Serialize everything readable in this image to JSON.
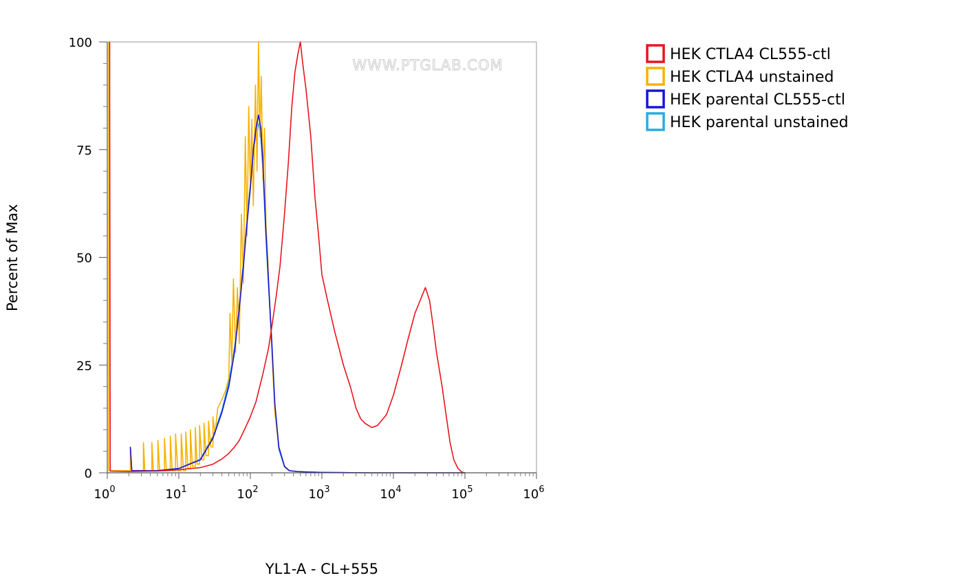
{
  "chart_data": {
    "type": "line",
    "xlabel": "YL1-A - CL+555",
    "ylabel": "Percent of Max",
    "x_scale": "log",
    "xlim": [
      1,
      1000000
    ],
    "ylim": [
      0,
      100
    ],
    "x_ticks": [
      1,
      10,
      100,
      1000,
      10000,
      100000,
      1000000
    ],
    "y_ticks": [
      0,
      25,
      50,
      75,
      100
    ],
    "x_tick_labels": [
      {
        "base": "10",
        "exp": "0"
      },
      {
        "base": "10",
        "exp": "1"
      },
      {
        "base": "10",
        "exp": "2"
      },
      {
        "base": "10",
        "exp": "3"
      },
      {
        "base": "10",
        "exp": "4"
      },
      {
        "base": "10",
        "exp": "5"
      },
      {
        "base": "10",
        "exp": "6"
      }
    ],
    "y_tick_labels": [
      "0",
      "25",
      "50",
      "75",
      "100"
    ],
    "grid": false,
    "legend_position": "right",
    "watermark": "WWW.PTGLAB.COM",
    "series": [
      {
        "name": "HEK CTLA4 CL555-ctl",
        "color": "#e8141c",
        "points": [
          [
            1.08,
            100
          ],
          [
            1.08,
            88
          ],
          [
            1.1,
            0.4
          ],
          [
            2,
            0.3
          ],
          [
            5,
            0.4
          ],
          [
            10,
            0.7
          ],
          [
            15,
            1
          ],
          [
            20,
            1.2
          ],
          [
            30,
            2
          ],
          [
            40,
            3.2
          ],
          [
            50,
            4.5
          ],
          [
            60,
            6
          ],
          [
            70,
            7.5
          ],
          [
            80,
            9.5
          ],
          [
            100,
            13
          ],
          [
            120,
            16.5
          ],
          [
            150,
            23
          ],
          [
            180,
            29
          ],
          [
            200,
            34
          ],
          [
            230,
            41
          ],
          [
            260,
            48
          ],
          [
            300,
            60
          ],
          [
            340,
            72
          ],
          [
            380,
            85
          ],
          [
            420,
            93
          ],
          [
            460,
            97
          ],
          [
            500,
            100
          ],
          [
            540,
            95
          ],
          [
            600,
            89
          ],
          [
            700,
            78
          ],
          [
            800,
            64
          ],
          [
            900,
            55
          ],
          [
            1000,
            46
          ],
          [
            1200,
            40
          ],
          [
            1500,
            33
          ],
          [
            2000,
            25
          ],
          [
            2500,
            20
          ],
          [
            3000,
            15
          ],
          [
            3500,
            12.5
          ],
          [
            4000,
            11.5
          ],
          [
            5000,
            10.5
          ],
          [
            6000,
            11
          ],
          [
            8000,
            13.5
          ],
          [
            10000,
            18
          ],
          [
            13000,
            25
          ],
          [
            16000,
            31
          ],
          [
            20000,
            37
          ],
          [
            25000,
            41
          ],
          [
            28000,
            43
          ],
          [
            32000,
            40
          ],
          [
            36000,
            34
          ],
          [
            40000,
            28
          ],
          [
            48000,
            20
          ],
          [
            55000,
            13
          ],
          [
            62000,
            7
          ],
          [
            70000,
            3
          ],
          [
            80000,
            1
          ],
          [
            90000,
            0.2
          ],
          [
            100000,
            0
          ]
        ]
      },
      {
        "name": "HEK CTLA4 unstained",
        "color": "#f7b200",
        "points": [
          [
            1.05,
            100
          ],
          [
            1.05,
            0.5
          ],
          [
            2.1,
            0.5
          ],
          [
            2.1,
            6
          ],
          [
            2.2,
            0.5
          ],
          [
            3.2,
            0.5
          ],
          [
            3.2,
            7
          ],
          [
            3.35,
            0.5
          ],
          [
            4.2,
            0.5
          ],
          [
            4.2,
            7
          ],
          [
            4.4,
            0.5
          ],
          [
            5.1,
            0.5
          ],
          [
            5.1,
            7.5
          ],
          [
            5.4,
            0.5
          ],
          [
            6.3,
            0.5
          ],
          [
            6.3,
            8
          ],
          [
            6.7,
            0.5
          ],
          [
            7.6,
            0.5
          ],
          [
            7.6,
            8.5
          ],
          [
            8.1,
            0.5
          ],
          [
            9,
            0.5
          ],
          [
            9,
            9
          ],
          [
            9.7,
            0.5
          ],
          [
            10.8,
            0.5
          ],
          [
            10.8,
            9
          ],
          [
            11.6,
            0.5
          ],
          [
            12.5,
            0.5
          ],
          [
            12.5,
            9.5
          ],
          [
            13.4,
            1
          ],
          [
            14.5,
            1
          ],
          [
            14.5,
            10
          ],
          [
            15.5,
            1.5
          ],
          [
            17,
            1.5
          ],
          [
            17,
            10.5
          ],
          [
            18,
            2
          ],
          [
            19.5,
            2
          ],
          [
            19.5,
            11
          ],
          [
            21,
            3
          ],
          [
            22.5,
            3
          ],
          [
            22.5,
            11.5
          ],
          [
            24,
            4
          ],
          [
            26,
            4
          ],
          [
            26,
            12
          ],
          [
            28,
            6
          ],
          [
            30,
            6
          ],
          [
            30,
            13
          ],
          [
            32,
            9
          ],
          [
            35,
            15
          ],
          [
            40,
            17
          ],
          [
            45,
            19
          ],
          [
            50,
            22
          ],
          [
            52,
            37
          ],
          [
            55,
            25
          ],
          [
            58,
            45
          ],
          [
            62,
            28
          ],
          [
            66,
            43
          ],
          [
            70,
            30
          ],
          [
            75,
            60
          ],
          [
            80,
            44
          ],
          [
            85,
            78
          ],
          [
            90,
            55
          ],
          [
            95,
            85
          ],
          [
            100,
            66
          ],
          [
            105,
            82
          ],
          [
            110,
            62
          ],
          [
            118,
            90
          ],
          [
            124,
            70
          ],
          [
            130,
            100
          ],
          [
            136,
            78
          ],
          [
            142,
            92
          ],
          [
            150,
            68
          ],
          [
            158,
            80
          ],
          [
            165,
            58
          ],
          [
            175,
            50
          ],
          [
            185,
            40
          ],
          [
            200,
            28
          ],
          [
            220,
            14
          ],
          [
            250,
            6
          ],
          [
            300,
            1.5
          ],
          [
            350,
            0.5
          ],
          [
            450,
            0.3
          ],
          [
            600,
            0.2
          ],
          [
            1000,
            0.1
          ],
          [
            2000,
            0
          ],
          [
            100000,
            0
          ]
        ]
      },
      {
        "name": "HEK parental CL555-ctl",
        "color": "#1515d8",
        "points": [
          [
            2.1,
            6
          ],
          [
            2.2,
            0.5
          ],
          [
            5,
            0.5
          ],
          [
            10,
            1
          ],
          [
            20,
            3
          ],
          [
            30,
            8
          ],
          [
            40,
            14
          ],
          [
            50,
            20
          ],
          [
            60,
            28
          ],
          [
            70,
            38
          ],
          [
            80,
            48
          ],
          [
            90,
            58
          ],
          [
            100,
            66
          ],
          [
            110,
            75
          ],
          [
            120,
            80
          ],
          [
            130,
            83
          ],
          [
            140,
            80
          ],
          [
            150,
            72
          ],
          [
            165,
            56
          ],
          [
            180,
            44
          ],
          [
            200,
            30
          ],
          [
            220,
            16
          ],
          [
            250,
            6
          ],
          [
            300,
            1.5
          ],
          [
            350,
            0.5
          ],
          [
            450,
            0.3
          ],
          [
            600,
            0.2
          ],
          [
            1000,
            0.1
          ],
          [
            2000,
            0.05
          ],
          [
            5000,
            0
          ],
          [
            100000,
            0
          ]
        ]
      },
      {
        "name": "HEK parental unstained",
        "color": "#29abe2",
        "points": [
          [
            2.1,
            6
          ],
          [
            2.2,
            0.5
          ],
          [
            5,
            0.5
          ],
          [
            10,
            1
          ],
          [
            20,
            3.2
          ],
          [
            30,
            8.5
          ],
          [
            40,
            14.5
          ],
          [
            50,
            21
          ],
          [
            60,
            29
          ],
          [
            70,
            39
          ],
          [
            80,
            49
          ],
          [
            90,
            59
          ],
          [
            100,
            67
          ],
          [
            110,
            74
          ],
          [
            120,
            79
          ],
          [
            130,
            81
          ],
          [
            140,
            78
          ],
          [
            150,
            70
          ],
          [
            165,
            55
          ],
          [
            180,
            43
          ],
          [
            200,
            29
          ],
          [
            220,
            15
          ],
          [
            250,
            5.5
          ],
          [
            300,
            1.4
          ],
          [
            350,
            0.5
          ],
          [
            450,
            0.3
          ],
          [
            600,
            0.2
          ],
          [
            1000,
            0.1
          ],
          [
            2000,
            0.05
          ],
          [
            5000,
            0
          ],
          [
            100000,
            0
          ]
        ]
      }
    ]
  }
}
